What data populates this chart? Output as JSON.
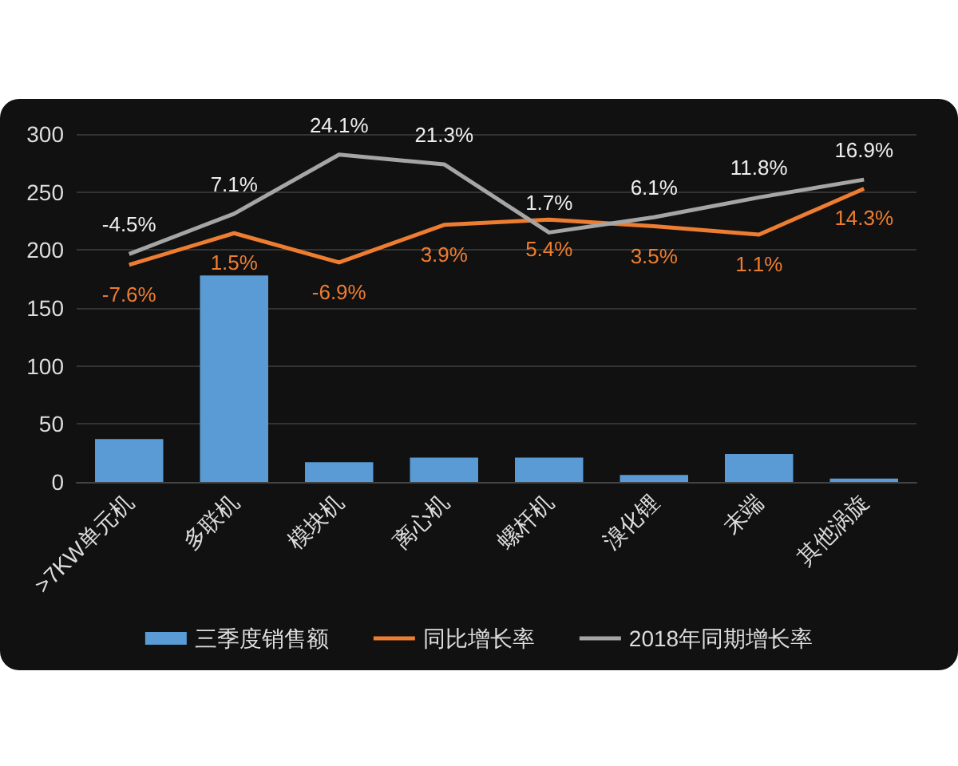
{
  "chart_data": {
    "type": "bar",
    "categories": [
      ">7KW单元机",
      "多联机",
      "模块机",
      "离心机",
      "螺杆机",
      "溴化锂",
      "末端",
      "其他涡旋"
    ],
    "series": [
      {
        "name": "三季度销售额",
        "color": "#5b9bd5",
        "values": [
          37,
          178,
          17,
          21,
          21,
          6,
          24,
          3
        ]
      },
      {
        "name": "同比增长率",
        "type": "line",
        "axis": "y2",
        "color": "#ed7d31",
        "values": [
          -7.6,
          1.5,
          -6.9,
          3.9,
          5.4,
          3.5,
          1.1,
          14.3
        ],
        "value_labels": [
          "-7.6%",
          "1.5%",
          "-6.9%",
          "3.9%",
          "5.4%",
          "3.5%",
          "1.1%",
          "14.3%"
        ]
      },
      {
        "name": "2018年同期增长率",
        "type": "line",
        "axis": "y2",
        "color": "#a5a5a5",
        "values": [
          -4.5,
          7.1,
          24.1,
          21.3,
          1.7,
          6.1,
          11.8,
          16.9
        ],
        "value_labels": [
          "-4.5%",
          "7.1%",
          "24.1%",
          "21.3%",
          "1.7%",
          "6.1%",
          "11.8%",
          "16.9%"
        ]
      }
    ],
    "ylim": [
      0,
      300
    ],
    "yticks": [
      0,
      50,
      100,
      150,
      200,
      250,
      300
    ],
    "y2lim": [
      -70,
      30
    ],
    "grid": "y",
    "legend": "bottom",
    "marker": "none"
  }
}
